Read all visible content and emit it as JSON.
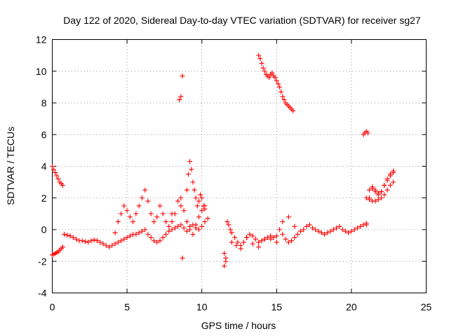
{
  "chart_data": {
    "type": "scatter",
    "title": "Day 122 of 2020, Sidereal Day-to-day VTEC variation (SDTVAR) for receiver sg27",
    "xlabel": "GPS time / hours",
    "ylabel": "SDTVAR / TECUs",
    "xlim": [
      0,
      25
    ],
    "ylim": [
      -4,
      12
    ],
    "xticks": [
      0,
      5,
      10,
      15,
      20,
      25
    ],
    "yticks": [
      -4,
      -2,
      0,
      2,
      4,
      6,
      8,
      10,
      12
    ],
    "xtick_labels": [
      "0",
      "5",
      "10",
      "15",
      "20",
      "25"
    ],
    "ytick_labels": [
      "-4",
      "-2",
      "0",
      "2",
      "4",
      "6",
      "8",
      "10",
      "12"
    ],
    "grid": true,
    "marker": "+",
    "color": "#ff0000",
    "series": [
      {
        "name": "sdtvar",
        "x": [
          0.0,
          0.1,
          0.2,
          0.3,
          0.4,
          0.5,
          0.6,
          0.7,
          0.0,
          0.1,
          0.2,
          0.3,
          0.4,
          0.5,
          0.6,
          0.7,
          0.8,
          1.0,
          1.2,
          1.4,
          1.6,
          1.8,
          2.0,
          2.2,
          2.4,
          2.6,
          2.8,
          3.0,
          3.2,
          3.4,
          3.6,
          3.8,
          4.0,
          4.2,
          4.4,
          4.6,
          4.8,
          5.0,
          5.2,
          5.4,
          5.6,
          5.8,
          6.0,
          6.2,
          6.4,
          6.6,
          6.8,
          7.0,
          7.2,
          7.4,
          7.6,
          7.8,
          8.0,
          8.2,
          8.4,
          8.6,
          8.8,
          9.0,
          9.2,
          9.4,
          9.6,
          9.8,
          10.0,
          10.2,
          10.4,
          4.2,
          4.4,
          4.6,
          4.8,
          5.0,
          5.2,
          5.4,
          5.6,
          5.8,
          6.0,
          6.2,
          6.4,
          6.6,
          6.8,
          7.0,
          7.2,
          7.4,
          7.6,
          7.8,
          8.0,
          8.5,
          8.6,
          8.7,
          8.6,
          8.7,
          9.0,
          9.1,
          9.2,
          9.3,
          9.4,
          9.5,
          9.6,
          9.7,
          9.8,
          9.9,
          10.0,
          10.1,
          10.2,
          8.0,
          8.2,
          8.4,
          8.6,
          8.8,
          9.0,
          9.2,
          9.4,
          9.6,
          9.8,
          10.0,
          10.2,
          11.5,
          11.6,
          11.7,
          11.8,
          11.9,
          12.0,
          12.2,
          12.4,
          12.6,
          12.8,
          13.0,
          13.2,
          13.4,
          13.6,
          13.8,
          14.0,
          14.2,
          14.4,
          14.6,
          14.8,
          15.0,
          15.2,
          15.4,
          15.6,
          15.8,
          16.0,
          16.2,
          16.4,
          16.6,
          16.8,
          17.0,
          17.2,
          17.4,
          17.6,
          17.8,
          18.0,
          18.2,
          18.4,
          18.6,
          18.8,
          19.0,
          19.2,
          19.4,
          19.6,
          19.8,
          20.0,
          20.2,
          20.4,
          20.6,
          20.8,
          21.0,
          11.5,
          11.6,
          12.0,
          12.3,
          12.6,
          13.0,
          13.4,
          13.8,
          14.2,
          14.6,
          15.0,
          15.4,
          15.8,
          16.2,
          13.8,
          13.9,
          14.0,
          14.1,
          14.2,
          14.3,
          14.4,
          14.5,
          14.6,
          14.7,
          14.8,
          14.9,
          15.0,
          15.1,
          15.2,
          15.3,
          15.4,
          15.5,
          15.6,
          15.7,
          15.8,
          15.9,
          16.0,
          16.1,
          20.8,
          20.9,
          21.0,
          21.1,
          21.0,
          21.2,
          21.4,
          21.6,
          21.8,
          22.0,
          22.2,
          22.4,
          22.6,
          22.8,
          21.2,
          21.4,
          21.6,
          21.8,
          22.0,
          22.2,
          22.4,
          22.6,
          22.8,
          21.0,
          21.2,
          21.4,
          21.6,
          21.8,
          22.0,
          22.2,
          22.4,
          22.6,
          22.8
        ],
        "y": [
          -1.6,
          -1.55,
          -1.5,
          -1.45,
          -1.4,
          -1.3,
          -1.2,
          -1.1,
          4.0,
          3.8,
          3.6,
          3.4,
          3.2,
          3.0,
          2.9,
          2.8,
          -0.3,
          -0.35,
          -0.4,
          -0.5,
          -0.6,
          -0.7,
          -0.7,
          -0.75,
          -0.8,
          -0.7,
          -0.65,
          -0.7,
          -0.8,
          -0.9,
          -1.0,
          -1.1,
          -1.0,
          -0.9,
          -0.8,
          -0.7,
          -0.6,
          -0.5,
          -0.4,
          -0.3,
          -0.3,
          -0.2,
          -0.1,
          0.0,
          -0.3,
          -0.5,
          -0.7,
          -0.8,
          -0.7,
          -0.5,
          -0.3,
          -0.1,
          0.0,
          0.1,
          0.2,
          0.3,
          0.1,
          -0.1,
          0.2,
          0.3,
          0.1,
          0.0,
          0.2,
          0.5,
          0.7,
          -0.2,
          0.5,
          1.0,
          1.5,
          1.2,
          0.8,
          0.5,
          1.0,
          1.5,
          2.0,
          2.5,
          1.8,
          1.0,
          0.5,
          0.8,
          1.5,
          1.0,
          0.5,
          0.2,
          1.0,
          8.2,
          8.4,
          9.7,
          1.5,
          -1.8,
          2.5,
          3.5,
          4.3,
          3.8,
          3.0,
          2.5,
          2.0,
          1.5,
          1.8,
          2.2,
          2.0,
          1.5,
          1.3,
          0.5,
          1.0,
          1.8,
          2.0,
          1.2,
          0.5,
          0.0,
          -0.3,
          0.3,
          0.8,
          1.2,
          1.5,
          -2.3,
          -1.8,
          0.5,
          0.3,
          0.0,
          -0.2,
          -0.5,
          -0.8,
          -1.0,
          -0.8,
          -0.5,
          -0.3,
          -0.4,
          -0.6,
          -0.8,
          -0.7,
          -0.6,
          -0.5,
          -0.6,
          -0.5,
          -0.4,
          0.0,
          -0.3,
          -0.6,
          -0.8,
          -0.7,
          -0.5,
          -0.3,
          -0.1,
          0.0,
          0.2,
          0.3,
          0.1,
          0.0,
          -0.1,
          -0.2,
          -0.3,
          -0.2,
          -0.1,
          0.0,
          0.1,
          0.2,
          0.0,
          -0.1,
          -0.2,
          -0.1,
          0.0,
          0.1,
          0.2,
          0.3,
          0.4,
          -1.5,
          -2.0,
          -0.8,
          -1.0,
          -1.2,
          -0.5,
          -0.9,
          -1.1,
          -0.6,
          -0.4,
          -0.8,
          0.5,
          0.8,
          0.2,
          11.0,
          10.8,
          10.5,
          10.2,
          10.0,
          9.8,
          9.7,
          9.6,
          9.8,
          9.9,
          9.7,
          9.6,
          9.4,
          9.2,
          9.0,
          8.7,
          8.4,
          8.2,
          8.0,
          7.9,
          7.8,
          7.7,
          7.6,
          7.5,
          6.0,
          6.1,
          6.2,
          6.1,
          2.0,
          1.9,
          1.8,
          1.8,
          1.9,
          2.0,
          2.2,
          2.5,
          2.8,
          3.0,
          2.5,
          2.6,
          2.4,
          2.3,
          2.4,
          2.8,
          3.1,
          3.4,
          3.6,
          0.3,
          2.0,
          2.7,
          2.5,
          2.2,
          2.4,
          2.8,
          3.2,
          3.5,
          3.7
        ]
      }
    ]
  }
}
